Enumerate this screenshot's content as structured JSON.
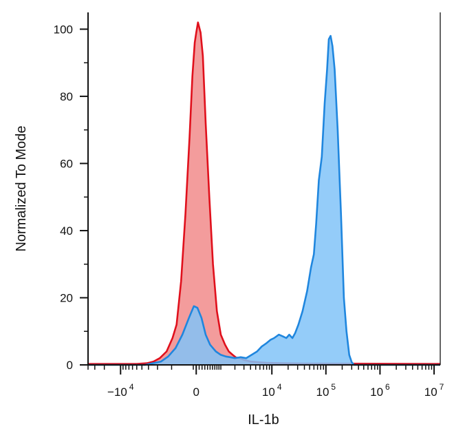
{
  "chart_data": {
    "type": "area",
    "title": "",
    "xlabel": "IL-1b",
    "ylabel": "Normalized To Mode",
    "x_scale": "biexponential",
    "xlim": [
      -40000,
      13000000
    ],
    "ylim": [
      0,
      105
    ],
    "y_ticks": [
      0,
      20,
      40,
      60,
      80,
      100
    ],
    "y_tick_labels": [
      "0",
      "20",
      "40",
      "60",
      "80",
      "100"
    ],
    "x_ticks": [
      {
        "base": "−10",
        "exp": "4",
        "value": -10000
      },
      {
        "base": "0",
        "exp": "",
        "value": 0
      },
      {
        "base": "10",
        "exp": "4",
        "value": 10000
      },
      {
        "base": "10",
        "exp": "5",
        "value": 100000
      },
      {
        "base": "10",
        "exp": "6",
        "value": 1000000
      },
      {
        "base": "10",
        "exp": "7",
        "value": 10000000
      }
    ],
    "grid": false,
    "legend": "none",
    "series": [
      {
        "fill": "#f08080",
        "stroke": "#e0101c",
        "opacity": 0.78,
        "points": [
          [
            -40000,
            0.3
          ],
          [
            -5000,
            0.3
          ],
          [
            -3200,
            0.5
          ],
          [
            -2400,
            1
          ],
          [
            -1800,
            2
          ],
          [
            -1300,
            4
          ],
          [
            -950,
            8
          ],
          [
            -750,
            12
          ],
          [
            -550,
            25
          ],
          [
            -380,
            45
          ],
          [
            -230,
            68
          ],
          [
            -130,
            86
          ],
          [
            -50,
            96
          ],
          [
            0,
            99
          ],
          [
            60,
            102
          ],
          [
            150,
            99
          ],
          [
            230,
            92
          ],
          [
            330,
            72
          ],
          [
            470,
            50
          ],
          [
            620,
            30
          ],
          [
            800,
            16
          ],
          [
            1000,
            9
          ],
          [
            1250,
            6
          ],
          [
            1500,
            4
          ],
          [
            1800,
            3
          ],
          [
            2100,
            2.2
          ],
          [
            2500,
            2
          ],
          [
            3000,
            1.5
          ],
          [
            4000,
            1
          ],
          [
            5500,
            0.8
          ],
          [
            8000,
            0.6
          ],
          [
            15000,
            0.5
          ],
          [
            40000,
            0.4
          ],
          [
            13000000,
            0.3
          ]
        ]
      },
      {
        "fill": "#81c3f8",
        "stroke": "#1f86de",
        "opacity": 0.85,
        "points": [
          [
            -40000,
            0
          ],
          [
            -3500,
            0
          ],
          [
            -2500,
            0.5
          ],
          [
            -1700,
            1
          ],
          [
            -1200,
            2.5
          ],
          [
            -800,
            5
          ],
          [
            -500,
            9
          ],
          [
            -250,
            14
          ],
          [
            -80,
            17.5
          ],
          [
            40,
            17
          ],
          [
            180,
            14
          ],
          [
            330,
            9
          ],
          [
            500,
            6
          ],
          [
            750,
            4
          ],
          [
            1000,
            3
          ],
          [
            1300,
            2.5
          ],
          [
            1600,
            2.3
          ],
          [
            2000,
            2
          ],
          [
            2600,
            2.3
          ],
          [
            3300,
            2
          ],
          [
            4200,
            3
          ],
          [
            5300,
            4
          ],
          [
            6500,
            5.5
          ],
          [
            8000,
            6.5
          ],
          [
            9500,
            7.5
          ],
          [
            11000,
            8
          ],
          [
            13500,
            9
          ],
          [
            16000,
            8.5
          ],
          [
            18500,
            8
          ],
          [
            21000,
            9
          ],
          [
            24000,
            8
          ],
          [
            27000,
            9.5
          ],
          [
            31000,
            12
          ],
          [
            37000,
            16
          ],
          [
            45000,
            22
          ],
          [
            53000,
            29
          ],
          [
            60000,
            33
          ],
          [
            66000,
            42
          ],
          [
            74000,
            55
          ],
          [
            84000,
            62
          ],
          [
            95000,
            78
          ],
          [
            105000,
            88
          ],
          [
            113000,
            97
          ],
          [
            122000,
            98
          ],
          [
            132000,
            95
          ],
          [
            145000,
            88
          ],
          [
            165000,
            70
          ],
          [
            190000,
            45
          ],
          [
            215000,
            20
          ],
          [
            240000,
            10
          ],
          [
            270000,
            3
          ],
          [
            300000,
            0.8
          ],
          [
            330000,
            0
          ],
          [
            13000000,
            0
          ]
        ]
      }
    ]
  }
}
